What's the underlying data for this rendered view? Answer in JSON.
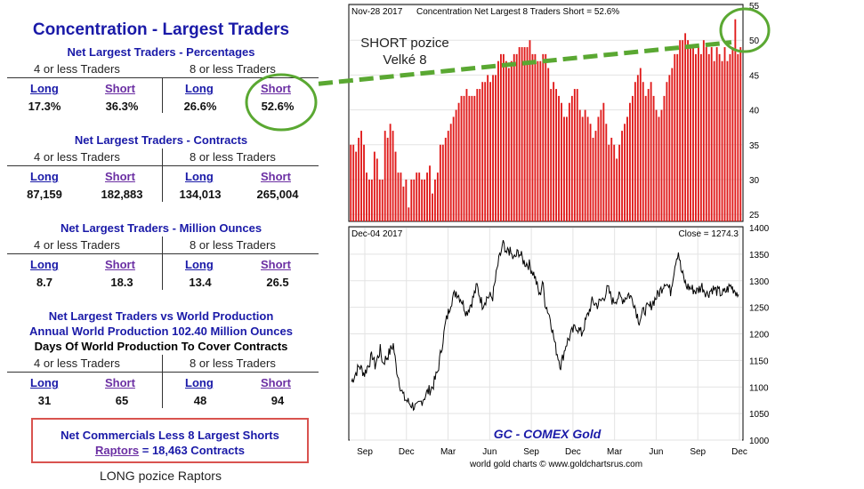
{
  "left_panel": {
    "title": "Concentration - Largest Traders",
    "section1": {
      "title": "Net Largest Traders - Percentages",
      "col4": "4 or less Traders",
      "col8": "8 or less Traders",
      "long": "Long",
      "short": "Short",
      "values": [
        "17.3%",
        "36.3%",
        "26.6%",
        "52.6%"
      ]
    },
    "section2": {
      "title": "Net Largest Traders - Contracts",
      "col4": "4 or less Traders",
      "col8": "8 or less Traders",
      "long": "Long",
      "short": "Short",
      "values": [
        "87,159",
        "182,883",
        "134,013",
        "265,004"
      ]
    },
    "section3": {
      "title": "Net Largest Traders - Million Ounces",
      "col4": "4 or less Traders",
      "col8": "8 or less Traders",
      "long": "Long",
      "short": "Short",
      "values": [
        "8.7",
        "18.3",
        "13.4",
        "26.5"
      ]
    },
    "section4": {
      "title": "Net Largest Traders vs World Production",
      "line2": "Annual World Production 102.40 Million Ounces",
      "line3": "Days Of World Production To Cover Contracts",
      "col4": "4 or less Traders",
      "col8": "8 or less Traders",
      "long": "Long",
      "short": "Short",
      "values": [
        "31",
        "65",
        "48",
        "94"
      ]
    },
    "box": {
      "line1": "Net Commercials Less 8 Largest Shorts",
      "raptors_link": "Raptors",
      "raptors_value": "= 18,463 Contracts"
    },
    "caption": "LONG pozice Raptors"
  },
  "annotation": {
    "line1": "SHORT pozice",
    "line2": "Velké 8"
  },
  "colors": {
    "bar": "#e01b1b",
    "trend": "#5aa832",
    "circle": "#5aa832",
    "title": "#1a1aa8",
    "short_link": "#6b2fa3",
    "box_border": "#d9534f",
    "chart_label": "#1a1aa8"
  },
  "chart_data": [
    {
      "type": "bar",
      "header_left": "Nov-28 2017",
      "header_text": "Concentration Net Largest 8 Traders Short = 52.6%",
      "ylim": [
        24,
        55
      ],
      "yticks": [
        25,
        30,
        35,
        40,
        45,
        50,
        55
      ],
      "values": [
        35,
        35,
        34,
        36,
        37,
        35,
        31,
        30,
        30,
        34,
        33,
        30,
        30,
        37,
        36,
        38,
        37,
        34,
        31,
        31,
        29,
        30,
        26,
        30,
        30,
        31,
        31,
        30,
        30,
        31,
        32,
        28,
        30,
        31,
        35,
        35,
        36,
        37,
        38,
        39,
        40,
        41,
        42,
        42,
        43,
        42,
        42,
        42,
        43,
        43,
        44,
        44,
        45,
        44,
        45,
        45,
        47,
        48,
        48,
        47,
        46,
        47,
        48,
        48,
        49,
        49,
        49,
        49,
        50,
        48,
        48,
        47,
        47,
        48,
        48,
        46,
        43,
        44,
        43,
        42,
        41,
        39,
        39,
        41,
        42,
        43,
        43,
        40,
        39,
        40,
        39,
        38,
        36,
        37,
        39,
        40,
        41,
        38,
        35,
        36,
        35,
        33,
        35,
        37,
        38,
        39,
        41,
        42,
        44,
        45,
        46,
        44,
        42,
        43,
        44,
        42,
        40,
        39,
        40,
        42,
        44,
        45,
        46,
        48,
        48,
        50,
        50,
        51,
        50,
        49,
        49,
        48,
        49,
        48,
        50,
        49,
        48,
        49,
        47,
        49,
        48,
        47,
        49,
        47,
        48,
        49,
        53,
        48,
        49
      ],
      "trend": {
        "start_y": 44.0,
        "end_y": 50.2
      }
    },
    {
      "type": "line",
      "header_left": "Dec-04 2017",
      "header_right": "Close = 1274.3",
      "ylim": [
        1000,
        1400
      ],
      "yticks": [
        1000,
        1050,
        1100,
        1150,
        1200,
        1250,
        1300,
        1350,
        1400
      ],
      "x_tick_labels": [
        "Sep",
        "Dec",
        "Mar",
        "Jun",
        "Sep",
        "Dec",
        "Mar",
        "Jun",
        "Sep",
        "Dec"
      ],
      "anchors": [
        [
          0,
          1110
        ],
        [
          3,
          1140
        ],
        [
          5,
          1125
        ],
        [
          8,
          1160
        ],
        [
          9,
          1140
        ],
        [
          11,
          1170
        ],
        [
          12,
          1145
        ],
        [
          14,
          1160
        ],
        [
          16,
          1180
        ],
        [
          17,
          1140
        ],
        [
          19,
          1095
        ],
        [
          20,
          1080
        ],
        [
          22,
          1070
        ],
        [
          25,
          1060
        ],
        [
          27,
          1075
        ],
        [
          29,
          1090
        ],
        [
          31,
          1100
        ],
        [
          33,
          1130
        ],
        [
          36,
          1220
        ],
        [
          38,
          1260
        ],
        [
          40,
          1280
        ],
        [
          42,
          1265
        ],
        [
          44,
          1240
        ],
        [
          46,
          1260
        ],
        [
          48,
          1290
        ],
        [
          50,
          1255
        ],
        [
          52,
          1270
        ],
        [
          54,
          1270
        ],
        [
          56,
          1330
        ],
        [
          58,
          1370
        ],
        [
          59,
          1345
        ],
        [
          60,
          1360
        ],
        [
          62,
          1340
        ],
        [
          64,
          1355
        ],
        [
          66,
          1335
        ],
        [
          68,
          1330
        ],
        [
          70,
          1310
        ],
        [
          72,
          1270
        ],
        [
          73,
          1300
        ],
        [
          74,
          1260
        ],
        [
          76,
          1230
        ],
        [
          78,
          1175
        ],
        [
          80,
          1140
        ],
        [
          82,
          1180
        ],
        [
          84,
          1200
        ],
        [
          86,
          1215
        ],
        [
          88,
          1200
        ],
        [
          90,
          1230
        ],
        [
          92,
          1260
        ],
        [
          94,
          1255
        ],
        [
          96,
          1265
        ],
        [
          98,
          1285
        ],
        [
          100,
          1260
        ],
        [
          102,
          1270
        ],
        [
          104,
          1265
        ],
        [
          106,
          1275
        ],
        [
          108,
          1260
        ],
        [
          109,
          1240
        ],
        [
          110,
          1225
        ],
        [
          112,
          1245
        ],
        [
          114,
          1250
        ],
        [
          116,
          1265
        ],
        [
          118,
          1280
        ],
        [
          120,
          1300
        ],
        [
          122,
          1280
        ],
        [
          124,
          1340
        ],
        [
          125,
          1355
        ],
        [
          126,
          1320
        ],
        [
          128,
          1290
        ],
        [
          130,
          1285
        ],
        [
          132,
          1280
        ],
        [
          134,
          1290
        ],
        [
          136,
          1275
        ],
        [
          138,
          1285
        ],
        [
          140,
          1280
        ],
        [
          142,
          1275
        ],
        [
          145,
          1290
        ],
        [
          147,
          1280
        ],
        [
          148,
          1274
        ]
      ],
      "label": "GC - COMEX Gold",
      "source": "world gold charts © www.goldchartsrus.com"
    }
  ]
}
